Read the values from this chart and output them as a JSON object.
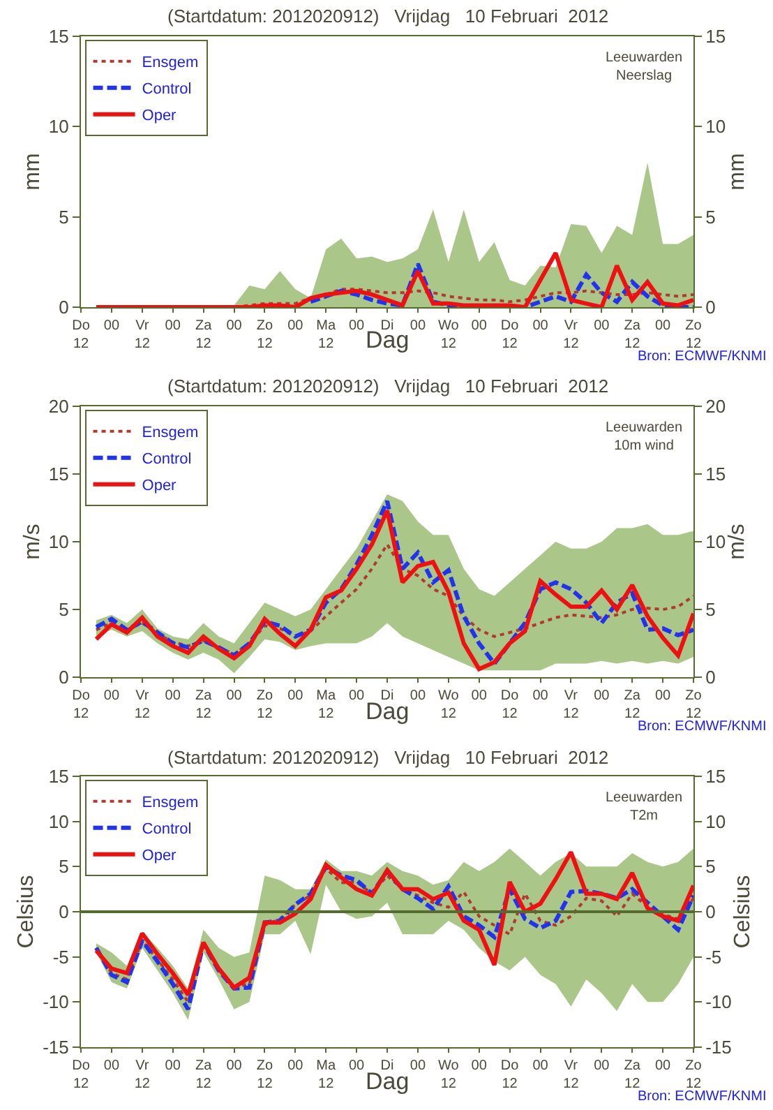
{
  "chart_data": [
    {
      "type": "line",
      "title": "(Startdatum: 2012020912)   Vrijdag   10 Februari  2012",
      "xlabel": "Dag",
      "ylabel": "mm",
      "y2label": "mm",
      "legend": "top left",
      "annotations": [
        "Leeuwarden\nNeerslag",
        "Bron: ECMWF/KNMI"
      ],
      "categories": [
        "Do\n12",
        null,
        "00",
        null,
        "Vr\n12",
        null,
        "00",
        null,
        "Za\n12",
        null,
        "00",
        null,
        "Zo\n12",
        null,
        "00",
        null,
        "Ma\n12",
        null,
        "00",
        null,
        "Di",
        null,
        "00",
        null,
        "Wo\n12",
        null,
        "00",
        null,
        "Do\n12",
        null,
        "00",
        null,
        "Vr\n12",
        null,
        "00",
        null,
        "Za\n12",
        null,
        "00",
        null,
        "Zo\n12"
      ],
      "ylim": [
        0,
        15
      ],
      "yticks": [
        0,
        5,
        10,
        15
      ],
      "y2lim": [
        0,
        15
      ],
      "y2ticks": [
        0,
        5,
        10,
        15
      ],
      "series": [
        {
          "name": "Ensgem",
          "color": "#b03a2e",
          "line_style": "dotted",
          "values": [
            null,
            null,
            null,
            null,
            null,
            null,
            null,
            null,
            null,
            0,
            0,
            0.1,
            0.2,
            0.2,
            0.2,
            0.5,
            0.7,
            1.0,
            1.0,
            0.9,
            0.8,
            0.8,
            0.9,
            0.8,
            0.6,
            0.5,
            0.4,
            0.4,
            0.3,
            0.4,
            0.6,
            0.8,
            0.8,
            0.9,
            0.8,
            0.7,
            0.7,
            0.8,
            0.7,
            0.6,
            0.7
          ],
          "lower": [
            null,
            0,
            0,
            0,
            0,
            0,
            0,
            0,
            0,
            0,
            0,
            0,
            0,
            0,
            0,
            0,
            0,
            0,
            0,
            0,
            0,
            0,
            0,
            0,
            0,
            0,
            0,
            0,
            0,
            0,
            0,
            0,
            0,
            0,
            0,
            0,
            0,
            0,
            0,
            0,
            0
          ],
          "upper": [
            null,
            0,
            0,
            0,
            0,
            0,
            0,
            0,
            0,
            0,
            0.1,
            1.2,
            1.0,
            2.0,
            1.0,
            0.5,
            3.2,
            3.8,
            2.7,
            2.8,
            2.5,
            2.7,
            3.2,
            5.4,
            2.5,
            5.4,
            2.5,
            3.6,
            1.5,
            1.2,
            2.3,
            2.2,
            4.6,
            4.5,
            3.0,
            4.5,
            4.0,
            8.0,
            3.5,
            3.5,
            4.0
          ]
        },
        {
          "name": "Control",
          "color": "#2233ee",
          "line_style": "dashed",
          "values": [
            null,
            null,
            null,
            null,
            null,
            null,
            null,
            null,
            null,
            null,
            null,
            null,
            null,
            null,
            null,
            0.3,
            0.6,
            0.9,
            0.7,
            0.4,
            0.2,
            0.1,
            2.4,
            0.3,
            0.1,
            0,
            0,
            0,
            0,
            0,
            0.3,
            0.6,
            0.3,
            1.8,
            0.8,
            0.3,
            1.4,
            0.6,
            0.1,
            0,
            0
          ]
        },
        {
          "name": "Oper",
          "color": "#ee1111",
          "line_style": "solid",
          "values": [
            null,
            0,
            0,
            0,
            0,
            0,
            0,
            0,
            0,
            0,
            0,
            0,
            0.1,
            0.1,
            0,
            0.5,
            0.7,
            0.8,
            0.9,
            0.7,
            0.4,
            0.1,
            2.0,
            0.2,
            0.2,
            0.1,
            0.1,
            0.1,
            0.1,
            0,
            1.5,
            3.0,
            0.4,
            0.2,
            0,
            2.3,
            0.4,
            1.4,
            0.2,
            0.1,
            0.4
          ]
        }
      ]
    },
    {
      "type": "line",
      "title": "(Startdatum: 2012020912)   Vrijdag   10 Februari  2012",
      "xlabel": "Dag",
      "ylabel": "m/s",
      "y2label": "m/s",
      "legend": "top left",
      "annotations": [
        "Leeuwarden\n10m wind",
        "Bron: ECMWF/KNMI"
      ],
      "categories": [
        "Do\n12",
        null,
        "00",
        null,
        "Vr\n12",
        null,
        "00",
        null,
        "Za\n12",
        null,
        "00",
        null,
        "Zo\n12",
        null,
        "00",
        null,
        "Ma\n12",
        null,
        "00",
        null,
        "Di",
        null,
        "00",
        null,
        "Wo\n12",
        null,
        "00",
        null,
        "Do\n12",
        null,
        "00",
        null,
        "Vr\n12",
        null,
        "00",
        null,
        "Za\n12",
        null,
        "00",
        null,
        "Zo\n12"
      ],
      "ylim": [
        0,
        20
      ],
      "yticks": [
        0,
        5,
        10,
        15,
        20
      ],
      "y2lim": [
        0,
        20
      ],
      "y2ticks": [
        0,
        5,
        10,
        15,
        20
      ],
      "series": [
        {
          "name": "Ensgem",
          "color": "#b03a2e",
          "line_style": "dotted",
          "values": [
            null,
            3.5,
            4.0,
            3.5,
            4.0,
            3.2,
            2.6,
            2.3,
            2.7,
            2.2,
            1.7,
            2.5,
            3.8,
            3.6,
            3.0,
            3.4,
            4.5,
            5.5,
            6.5,
            8.0,
            9.8,
            8.0,
            7.5,
            6.5,
            6.0,
            4.5,
            3.5,
            3.0,
            3.3,
            3.6,
            4.0,
            4.4,
            4.6,
            4.5,
            4.4,
            4.6,
            5.0,
            5.1,
            5.0,
            5.2,
            6.0
          ],
          "lower": [
            null,
            3.0,
            3.5,
            3.0,
            3.4,
            2.5,
            1.8,
            1.3,
            1.8,
            1.3,
            0.3,
            1.5,
            2.8,
            2.6,
            2.0,
            2.3,
            2.5,
            2.5,
            2.5,
            3.0,
            4.0,
            3.0,
            2.5,
            2.0,
            1.5,
            1.0,
            0.5,
            0.5,
            0.5,
            0.5,
            0.5,
            1.0,
            1.0,
            1.0,
            1.2,
            1.0,
            1.2,
            1.0,
            1.2,
            1.0,
            1.5
          ],
          "upper": [
            null,
            4.2,
            4.6,
            4.0,
            5.0,
            3.6,
            3.0,
            2.8,
            4.0,
            3.0,
            2.5,
            4.0,
            5.5,
            5.0,
            4.5,
            5.0,
            6.5,
            8.0,
            9.5,
            11.5,
            13.5,
            13.0,
            11.5,
            10.5,
            10.5,
            8.0,
            6.5,
            6.0,
            7.0,
            8.0,
            9.0,
            10.0,
            9.5,
            9.5,
            10.0,
            11.0,
            11.0,
            11.3,
            10.5,
            10.5,
            10.8
          ]
        },
        {
          "name": "Control",
          "color": "#2233ee",
          "line_style": "dashed",
          "values": [
            null,
            3.7,
            4.3,
            3.5,
            4.1,
            3.3,
            2.5,
            2.2,
            2.7,
            2.2,
            1.6,
            2.5,
            4.1,
            3.8,
            3.0,
            3.5,
            5.5,
            6.5,
            8.3,
            10.5,
            13.0,
            8.0,
            9.2,
            7.0,
            7.9,
            4.5,
            2.5,
            1.0,
            2.5,
            4.0,
            6.5,
            7.0,
            6.5,
            5.5,
            4.0,
            5.5,
            6.2,
            3.5,
            3.6,
            3.1,
            3.5
          ]
        },
        {
          "name": "Oper",
          "color": "#ee1111",
          "line_style": "solid",
          "values": [
            null,
            2.8,
            3.9,
            3.3,
            4.4,
            3.0,
            2.3,
            1.8,
            3.0,
            2.1,
            1.4,
            2.3,
            4.3,
            3.2,
            2.3,
            3.5,
            5.9,
            6.4,
            8.0,
            9.8,
            12.3,
            7.0,
            8.2,
            8.5,
            6.3,
            2.5,
            0.6,
            1.1,
            2.5,
            3.4,
            7.1,
            6.1,
            5.2,
            5.2,
            6.4,
            5.0,
            6.8,
            4.5,
            2.9,
            1.6,
            4.7
          ]
        }
      ]
    },
    {
      "type": "line",
      "title": "(Startdatum: 2012020912)   Vrijdag   10 Februari  2012",
      "xlabel": "Dag",
      "ylabel": "Celsius",
      "y2label": "Celsius",
      "legend": "top left",
      "annotations": [
        "Leeuwarden\nT2m",
        "Bron: ECMWF/KNMI"
      ],
      "ref_lines": [
        {
          "axis": "y",
          "value": 0,
          "color": "#556b2f"
        }
      ],
      "categories": [
        "Do\n12",
        null,
        "00",
        null,
        "Vr\n12",
        null,
        "00",
        null,
        "Za\n12",
        null,
        "00",
        null,
        "Zo\n12",
        null,
        "00",
        null,
        "Ma\n12",
        null,
        "00",
        null,
        "Di",
        null,
        "00",
        null,
        "Wo\n12",
        null,
        "00",
        null,
        "Do\n12",
        null,
        "00",
        null,
        "Vr\n12",
        null,
        "00",
        null,
        "Za\n12",
        null,
        "00",
        null,
        "Zo\n12"
      ],
      "ylim": [
        -15,
        15
      ],
      "yticks": [
        -15,
        -10,
        -5,
        0,
        5,
        10,
        15
      ],
      "y2lim": [
        -15,
        15
      ],
      "y2ticks": [
        -15,
        -10,
        -5,
        0,
        5,
        10,
        15
      ],
      "series": [
        {
          "name": "Ensgem",
          "color": "#b03a2e",
          "line_style": "dotted",
          "values": [
            null,
            -4.0,
            -6.8,
            -7.5,
            -3.2,
            -5.3,
            -7.5,
            -10.0,
            -3.6,
            -6.2,
            -8.3,
            -8.0,
            -1.5,
            -0.8,
            0.8,
            1.8,
            4.8,
            3.2,
            3.3,
            2.0,
            4.0,
            2.5,
            1.8,
            1.0,
            0.5,
            2.2,
            -0.5,
            -1.5,
            -2.5,
            2.0,
            -1.0,
            -1.5,
            -0.5,
            1.5,
            1.2,
            -0.5,
            2.0,
            0.5,
            -0.3,
            -0.8,
            1.5
          ],
          "lower": [
            null,
            -4.5,
            -7.8,
            -8.5,
            -4.0,
            -6.5,
            -9.0,
            -12.0,
            -4.5,
            -7.5,
            -10.8,
            -10.0,
            -2.5,
            -2.5,
            -1.0,
            -4.7,
            3.0,
            0,
            -0.8,
            -0.5,
            1.0,
            -2.5,
            -2.5,
            -2.5,
            -1.0,
            -2.0,
            -4.0,
            -5.5,
            -6.5,
            -5.0,
            -7.0,
            -8.0,
            -10.5,
            -7.5,
            -9.0,
            -11.0,
            -8.0,
            -10.0,
            -10.0,
            -8.0,
            -5.0
          ],
          "upper": [
            null,
            -3.5,
            -4.5,
            -6.0,
            -2.2,
            -4.0,
            -6.0,
            -8.5,
            -2.0,
            -4.0,
            -5.0,
            -4.5,
            4.0,
            3.5,
            2.5,
            2.5,
            5.8,
            4.5,
            4.5,
            4.0,
            5.5,
            4.5,
            4.0,
            3.0,
            3.5,
            5.5,
            4.5,
            5.5,
            7.0,
            5.5,
            4.0,
            5.5,
            6.5,
            5.0,
            5.0,
            5.0,
            6.5,
            5.5,
            5.0,
            5.5,
            7.0
          ]
        },
        {
          "name": "Control",
          "color": "#2233ee",
          "line_style": "dashed",
          "values": [
            null,
            -4.0,
            -7.0,
            -7.8,
            -3.2,
            -5.5,
            -8.0,
            -10.8,
            -3.5,
            -6.5,
            -8.5,
            -8.4,
            -1.2,
            -1.0,
            0.8,
            2.0,
            5.0,
            4.0,
            3.5,
            2.0,
            4.5,
            2.5,
            1.5,
            0.3,
            2.8,
            -0.5,
            -1.5,
            -2.8,
            2.5,
            -0.8,
            -1.8,
            -1.0,
            2.2,
            2.3,
            2.0,
            1.5,
            2.5,
            1.0,
            -0.5,
            -2.0,
            1.8
          ]
        },
        {
          "name": "Oper",
          "color": "#ee1111",
          "line_style": "solid",
          "values": [
            null,
            -4.3,
            -6.3,
            -6.8,
            -2.4,
            -4.7,
            -6.8,
            -9.2,
            -3.4,
            -6.3,
            -8.4,
            -7.3,
            -1.2,
            -1.2,
            -0.2,
            1.4,
            5.2,
            3.8,
            2.5,
            1.8,
            4.6,
            2.5,
            2.5,
            1.4,
            2.1,
            -1.0,
            -2.0,
            -5.9,
            3.3,
            0,
            0.9,
            3.6,
            6.6,
            2.0,
            2.0,
            1.4,
            4.3,
            0.4,
            -0.5,
            -1.0,
            2.9
          ]
        }
      ]
    }
  ]
}
